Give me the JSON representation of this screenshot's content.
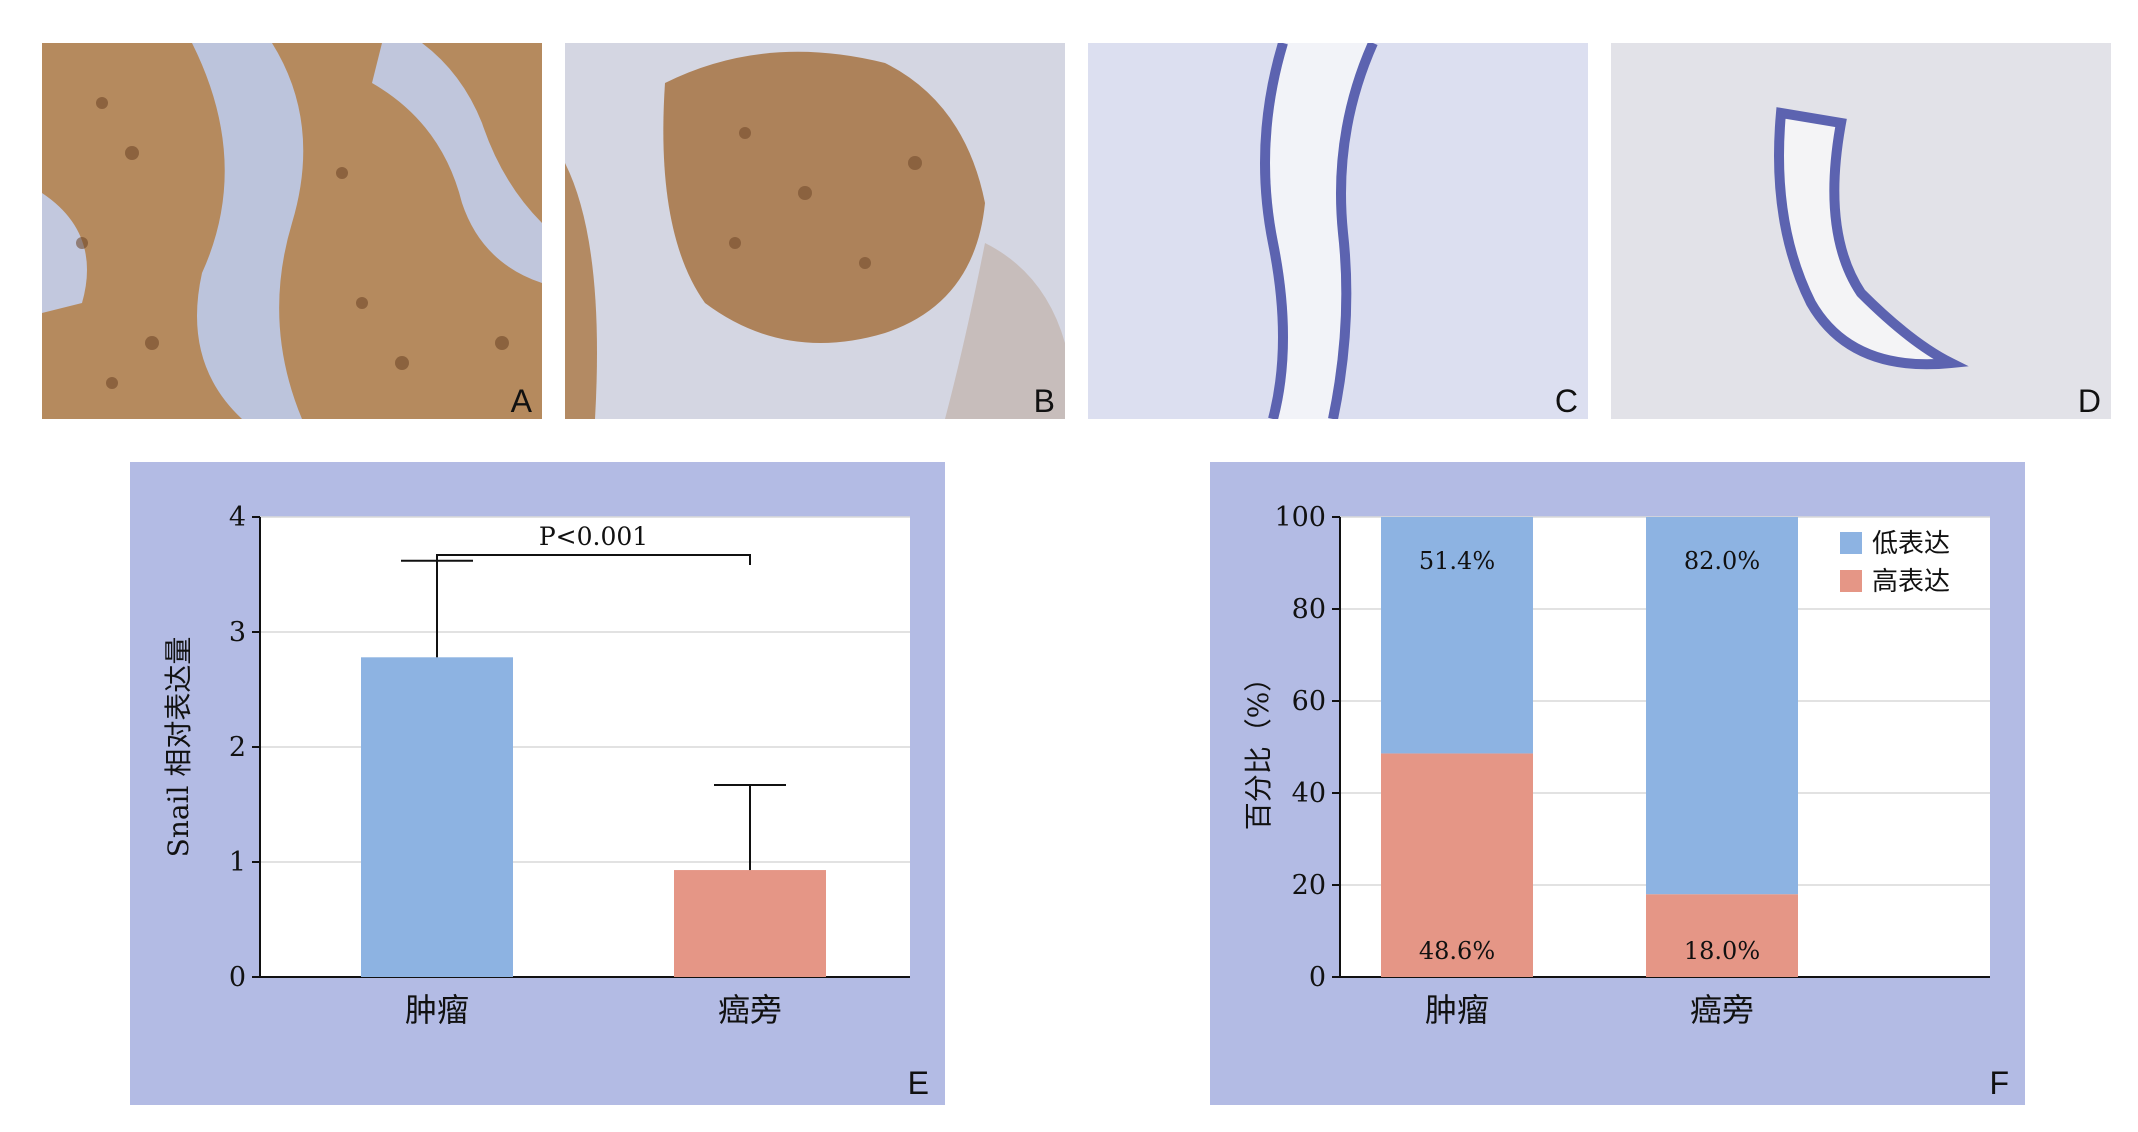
{
  "micrographs": [
    {
      "label": "A"
    },
    {
      "label": "B"
    },
    {
      "label": "C"
    },
    {
      "label": "D"
    }
  ],
  "panels": {
    "E": {
      "label": "E"
    },
    "F": {
      "label": "F"
    }
  },
  "chart_data": [
    {
      "type": "bar",
      "categories": [
        "肿瘤",
        "癌旁"
      ],
      "values": [
        2.78,
        0.93
      ],
      "error_upper": [
        3.62,
        1.67
      ],
      "ylabel": "Snail 相对表达量",
      "ylim": [
        0,
        4
      ],
      "yticks": [
        0,
        1,
        2,
        3,
        4
      ],
      "annotation": "P<0.001",
      "colors": [
        "#8db3e2",
        "#e59686"
      ],
      "grid": true
    },
    {
      "type": "bar",
      "stacked": true,
      "categories": [
        "肿瘤",
        "癌旁"
      ],
      "series": [
        {
          "name": "高表达",
          "values": [
            48.6,
            18.0
          ],
          "labels": [
            "48.6%",
            "18.0%"
          ],
          "color": "#e59686"
        },
        {
          "name": "低表达",
          "values": [
            51.4,
            82.0
          ],
          "labels": [
            "51.4%",
            "82.0%"
          ],
          "color": "#8db3e2"
        }
      ],
      "ylabel": "百分比（%）",
      "ylim": [
        0,
        100
      ],
      "yticks": [
        0,
        20,
        40,
        60,
        80,
        100
      ],
      "legend_position": "top-right",
      "grid": true
    }
  ]
}
